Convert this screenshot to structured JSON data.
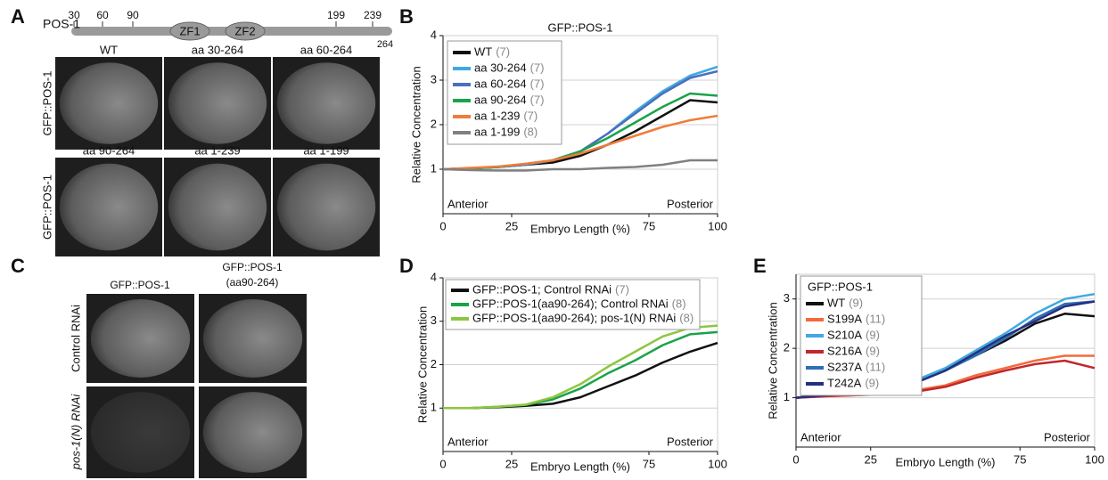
{
  "panel_labels": [
    "A",
    "B",
    "C",
    "D",
    "E"
  ],
  "panel_a": {
    "protein": "POS-1",
    "residues": [
      30,
      60,
      90,
      199,
      239,
      264
    ],
    "domains": [
      "ZF1",
      "ZF2"
    ],
    "row_labels": [
      "GFP::POS-1",
      "GFP::POS-1"
    ],
    "captions": [
      "WT",
      "aa 30-264",
      "aa 60-264",
      "aa 90-264",
      "aa 1-239",
      "aa 1-199"
    ]
  },
  "panel_c": {
    "column_headers": [
      [
        "GFP::POS-1"
      ],
      [
        "GFP::POS-1",
        "(aa90-264)"
      ]
    ],
    "row_labels": [
      "Control RNAi",
      "pos-1(N) RNAi"
    ]
  },
  "chart_data": [
    {
      "type": "line",
      "title": "GFP::POS-1",
      "x_label": "Embryo Length (%)",
      "y_label": "Relative Concentration",
      "annotations": [
        "Anterior",
        "Posterior"
      ],
      "grid": true,
      "x": [
        0,
        10,
        20,
        30,
        40,
        50,
        60,
        70,
        80,
        90,
        100
      ],
      "xlim": [
        0,
        100
      ],
      "xticks": [
        0,
        25,
        75,
        100
      ],
      "ylim": [
        0,
        4
      ],
      "yticks": [
        1,
        2,
        3,
        4
      ],
      "series": [
        {
          "name": "WT",
          "count": "(7)",
          "color": "#111111",
          "values": [
            1,
            1.02,
            1.05,
            1.1,
            1.15,
            1.3,
            1.55,
            1.85,
            2.2,
            2.55,
            2.5
          ]
        },
        {
          "name": "aa 30-264",
          "count": "(7)",
          "color": "#3fa9e0",
          "values": [
            1,
            1.02,
            1.05,
            1.1,
            1.2,
            1.4,
            1.8,
            2.3,
            2.75,
            3.1,
            3.3
          ]
        },
        {
          "name": "aa 60-264",
          "count": "(7)",
          "color": "#4b6fbd",
          "values": [
            1,
            1.02,
            1.05,
            1.1,
            1.2,
            1.4,
            1.8,
            2.25,
            2.7,
            3.05,
            3.2
          ]
        },
        {
          "name": "aa 90-264",
          "count": "(7)",
          "color": "#1aa34a",
          "values": [
            1,
            1.02,
            1.05,
            1.12,
            1.2,
            1.4,
            1.7,
            2.05,
            2.4,
            2.7,
            2.65
          ]
        },
        {
          "name": "aa 1-239",
          "count": "(7)",
          "color": "#f07c3c",
          "values": [
            1,
            1.03,
            1.06,
            1.12,
            1.2,
            1.35,
            1.55,
            1.75,
            1.95,
            2.1,
            2.2
          ]
        },
        {
          "name": "aa 1-199",
          "count": "(8)",
          "color": "#808080",
          "values": [
            1,
            0.98,
            0.97,
            0.97,
            1,
            1,
            1.03,
            1.05,
            1.1,
            1.2,
            1.2
          ]
        }
      ]
    },
    {
      "type": "line",
      "x_label": "Embryo Length (%)",
      "y_label": "Relative Concentration",
      "annotations": [
        "Anterior",
        "Posterior"
      ],
      "grid": true,
      "x": [
        0,
        10,
        20,
        30,
        40,
        50,
        60,
        70,
        80,
        90,
        100
      ],
      "xlim": [
        0,
        100
      ],
      "xticks": [
        0,
        25,
        75,
        100
      ],
      "ylim": [
        0,
        4
      ],
      "yticks": [
        1,
        2,
        3,
        4
      ],
      "series": [
        {
          "name": "GFP::POS-1; Control RNAi",
          "count": "(7)",
          "color": "#111111",
          "values": [
            1,
            1,
            1.02,
            1.05,
            1.1,
            1.25,
            1.5,
            1.75,
            2.05,
            2.3,
            2.5
          ]
        },
        {
          "name": "GFP::POS-1(aa90-264); Control RNAi",
          "count": "(8)",
          "color": "#1aa34a",
          "values": [
            1,
            1,
            1.03,
            1.07,
            1.2,
            1.45,
            1.8,
            2.1,
            2.45,
            2.7,
            2.75
          ]
        },
        {
          "name": "GFP::POS-1(aa90-264); pos-1(N) RNAi",
          "count": "(8)",
          "color": "#8dc63f",
          "values": [
            1,
            1,
            1.03,
            1.08,
            1.25,
            1.55,
            1.95,
            2.3,
            2.65,
            2.85,
            2.9
          ]
        }
      ]
    },
    {
      "type": "line",
      "legend_title": "GFP::POS-1",
      "x_label": "Embryo Length (%)",
      "y_label": "Relative Concentration",
      "annotations": [
        "Anterior",
        "Posterior"
      ],
      "grid": true,
      "x": [
        0,
        10,
        20,
        30,
        40,
        50,
        60,
        70,
        80,
        90,
        100
      ],
      "xlim": [
        0,
        100
      ],
      "xticks": [
        0,
        25,
        75,
        100
      ],
      "ylim": [
        0,
        3.5
      ],
      "yticks": [
        1,
        2,
        3
      ],
      "series": [
        {
          "name": "WT",
          "count": "(9)",
          "color": "#111111",
          "values": [
            1,
            1.05,
            1.1,
            1.15,
            1.3,
            1.55,
            1.85,
            2.15,
            2.5,
            2.7,
            2.65
          ]
        },
        {
          "name": "S199A",
          "count": "(11)",
          "color": "#f26b3a",
          "values": [
            1,
            1.03,
            1.05,
            1.08,
            1.15,
            1.25,
            1.45,
            1.6,
            1.75,
            1.85,
            1.85
          ]
        },
        {
          "name": "S210A",
          "count": "(9)",
          "color": "#3fa9e0",
          "values": [
            1,
            1.05,
            1.1,
            1.17,
            1.35,
            1.6,
            1.95,
            2.3,
            2.7,
            3.0,
            3.1
          ]
        },
        {
          "name": "S216A",
          "count": "(9)",
          "color": "#c1272d",
          "values": [
            1,
            1.03,
            1.05,
            1.07,
            1.12,
            1.22,
            1.4,
            1.55,
            1.68,
            1.75,
            1.6
          ]
        },
        {
          "name": "S237A",
          "count": "(11)",
          "color": "#2e6eb5",
          "values": [
            1,
            1.05,
            1.1,
            1.15,
            1.3,
            1.55,
            1.85,
            2.2,
            2.6,
            2.9,
            2.95
          ]
        },
        {
          "name": "T242A",
          "count": "(9)",
          "color": "#262f7e",
          "values": [
            1,
            1.05,
            1.1,
            1.15,
            1.3,
            1.55,
            1.9,
            2.25,
            2.55,
            2.85,
            2.95
          ]
        }
      ]
    }
  ]
}
